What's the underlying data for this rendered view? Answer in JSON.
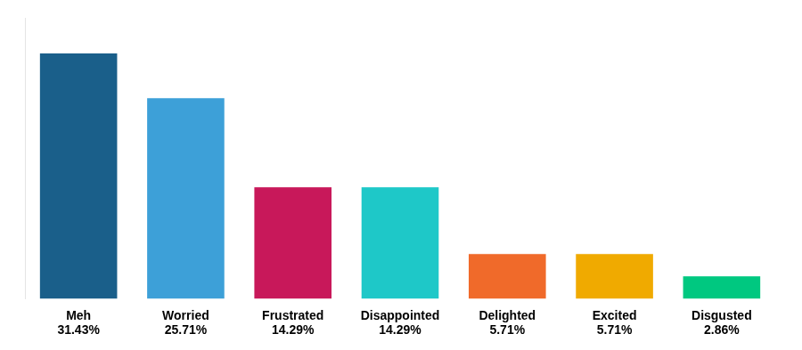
{
  "chart_data": {
    "type": "bar",
    "categories": [
      "Meh",
      "Worried",
      "Frustrated",
      "Disappointed",
      "Delighted",
      "Excited",
      "Disgusted"
    ],
    "values": [
      31.43,
      25.71,
      14.29,
      14.29,
      5.71,
      5.71,
      2.86
    ],
    "value_labels": [
      "31.43%",
      "25.71%",
      "14.29%",
      "14.29%",
      "5.71%",
      "5.71%",
      "2.86%"
    ],
    "data_labels": true,
    "colors": [
      "#1A5F8A",
      "#3DA0D8",
      "#C8185A",
      "#1EC8C8",
      "#F06A2A",
      "#F0AA00",
      "#00C880"
    ],
    "ylim": [
      0,
      36
    ],
    "grid": false,
    "tick_labels": "x"
  }
}
